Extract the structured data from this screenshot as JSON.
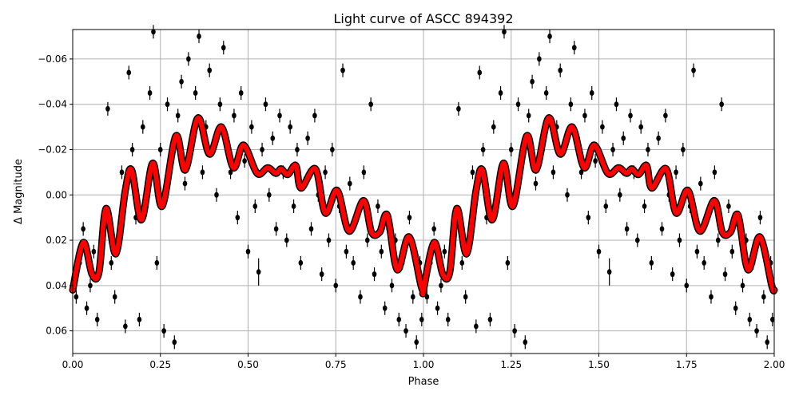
{
  "chart_data": {
    "type": "scatter",
    "title": "Light curve of ASCC 894392",
    "xlabel": "Phase",
    "ylabel": "Δ Magnitude",
    "xlim": [
      0,
      2
    ],
    "ylim": [
      0.07,
      -0.073
    ],
    "y_inverted": true,
    "grid": true,
    "x_ticks": [
      0,
      0.25,
      0.5,
      0.75,
      1.0,
      1.25,
      1.5,
      1.75,
      2.0
    ],
    "x_tick_labels": [
      "0.00",
      "0.25",
      "0.50",
      "0.75",
      "1.00",
      "1.25",
      "1.50",
      "1.75",
      "2.00"
    ],
    "y_ticks": [
      -0.06,
      -0.04,
      -0.02,
      0.0,
      0.02,
      0.04,
      0.06
    ],
    "y_tick_labels": [
      "−0.06",
      "−0.04",
      "−0.02",
      "0.00",
      "0.02",
      "0.04",
      "0.06"
    ],
    "colors": {
      "points": "#000000",
      "model": "#ff0000",
      "grid": "#b0b0b0"
    },
    "period_repeat": 1,
    "model_curve": {
      "phase": [
        0,
        0.03,
        0.055,
        0.075,
        0.095,
        0.123,
        0.15,
        0.168,
        0.196,
        0.228,
        0.255,
        0.294,
        0.321,
        0.357,
        0.39,
        0.424,
        0.458,
        0.487,
        0.526,
        0.556,
        0.579,
        0.594,
        0.613,
        0.636,
        0.651,
        0.692,
        0.72,
        0.754,
        0.788,
        0.829,
        0.852,
        0.875,
        0.897,
        0.925,
        0.959,
        0.993,
        1.0
      ],
      "mag": [
        0.042,
        0.021,
        0.035,
        0.034,
        0.006,
        0.026,
        -0.002,
        -0.011,
        0.011,
        -0.014,
        0.005,
        -0.026,
        -0.011,
        -0.034,
        -0.018,
        -0.03,
        -0.012,
        -0.022,
        -0.0095,
        -0.012,
        -0.0095,
        -0.0115,
        -0.009,
        -0.013,
        -0.003,
        -0.0115,
        0.008,
        -0.002,
        0.016,
        0.0025,
        0.0165,
        0.0165,
        0.009,
        0.033,
        0.0185,
        0.04,
        0.042
      ]
    },
    "points": [
      [
        0.01,
        0.045,
        0.003
      ],
      [
        0.02,
        0.03,
        0.003
      ],
      [
        0.03,
        0.015,
        0.003
      ],
      [
        0.04,
        0.05,
        0.003
      ],
      [
        0.05,
        0.04,
        0.003
      ],
      [
        0.06,
        0.025,
        0.003
      ],
      [
        0.07,
        0.055,
        0.003
      ],
      [
        0.08,
        0.02,
        0.003
      ],
      [
        0.09,
        0.01,
        0.003
      ],
      [
        0.1,
        -0.038,
        0.003
      ],
      [
        0.11,
        0.03,
        0.003
      ],
      [
        0.12,
        0.045,
        0.003
      ],
      [
        0.13,
        0.02,
        0.003
      ],
      [
        0.14,
        -0.01,
        0.003
      ],
      [
        0.15,
        0.058,
        0.003
      ],
      [
        0.16,
        -0.054,
        0.003
      ],
      [
        0.17,
        -0.02,
        0.003
      ],
      [
        0.18,
        0.01,
        0.003
      ],
      [
        0.19,
        0.055,
        0.003
      ],
      [
        0.2,
        -0.03,
        0.003
      ],
      [
        0.21,
        0.005,
        0.003
      ],
      [
        0.22,
        -0.045,
        0.003
      ],
      [
        0.23,
        -0.072,
        0.003
      ],
      [
        0.24,
        0.03,
        0.003
      ],
      [
        0.25,
        -0.02,
        0.003
      ],
      [
        0.26,
        0.06,
        0.003
      ],
      [
        0.27,
        -0.04,
        0.003
      ],
      [
        0.28,
        -0.015,
        0.003
      ],
      [
        0.29,
        0.065,
        0.003
      ],
      [
        0.3,
        -0.035,
        0.003
      ],
      [
        0.31,
        -0.05,
        0.003
      ],
      [
        0.32,
        -0.005,
        0.003
      ],
      [
        0.33,
        -0.06,
        0.003
      ],
      [
        0.34,
        -0.02,
        0.003
      ],
      [
        0.35,
        -0.045,
        0.003
      ],
      [
        0.36,
        -0.07,
        0.003
      ],
      [
        0.37,
        -0.01,
        0.003
      ],
      [
        0.38,
        -0.03,
        0.003
      ],
      [
        0.39,
        -0.055,
        0.003
      ],
      [
        0.4,
        -0.02,
        0.003
      ],
      [
        0.41,
        0.0,
        0.003
      ],
      [
        0.42,
        -0.04,
        0.003
      ],
      [
        0.43,
        -0.065,
        0.003
      ],
      [
        0.44,
        -0.025,
        0.003
      ],
      [
        0.45,
        -0.01,
        0.003
      ],
      [
        0.46,
        -0.035,
        0.003
      ],
      [
        0.47,
        0.01,
        0.003
      ],
      [
        0.48,
        -0.045,
        0.003
      ],
      [
        0.49,
        -0.015,
        0.003
      ],
      [
        0.5,
        0.025,
        0.003
      ],
      [
        0.51,
        -0.03,
        0.003
      ],
      [
        0.52,
        0.005,
        0.003
      ],
      [
        0.53,
        0.034,
        0.006
      ],
      [
        0.54,
        -0.02,
        0.003
      ],
      [
        0.55,
        -0.04,
        0.003
      ],
      [
        0.56,
        0.0,
        0.003
      ],
      [
        0.57,
        -0.025,
        0.003
      ],
      [
        0.58,
        0.015,
        0.003
      ],
      [
        0.59,
        -0.035,
        0.003
      ],
      [
        0.6,
        -0.01,
        0.003
      ],
      [
        0.61,
        0.02,
        0.003
      ],
      [
        0.62,
        -0.03,
        0.003
      ],
      [
        0.63,
        0.005,
        0.003
      ],
      [
        0.64,
        -0.02,
        0.003
      ],
      [
        0.65,
        0.03,
        0.003
      ],
      [
        0.66,
        -0.005,
        0.003
      ],
      [
        0.67,
        -0.025,
        0.003
      ],
      [
        0.68,
        0.015,
        0.003
      ],
      [
        0.69,
        -0.035,
        0.003
      ],
      [
        0.7,
        0.0,
        0.003
      ],
      [
        0.71,
        0.035,
        0.003
      ],
      [
        0.72,
        -0.01,
        0.003
      ],
      [
        0.73,
        0.02,
        0.003
      ],
      [
        0.74,
        -0.02,
        0.003
      ],
      [
        0.75,
        0.04,
        0.003
      ],
      [
        0.76,
        0.005,
        0.003
      ],
      [
        0.77,
        -0.055,
        0.003
      ],
      [
        0.78,
        0.025,
        0.003
      ],
      [
        0.79,
        -0.005,
        0.003
      ],
      [
        0.8,
        0.03,
        0.003
      ],
      [
        0.81,
        0.01,
        0.003
      ],
      [
        0.82,
        0.045,
        0.003
      ],
      [
        0.83,
        -0.01,
        0.003
      ],
      [
        0.84,
        0.02,
        0.003
      ],
      [
        0.85,
        -0.04,
        0.003
      ],
      [
        0.86,
        0.035,
        0.003
      ],
      [
        0.87,
        0.005,
        0.003
      ],
      [
        0.88,
        0.025,
        0.003
      ],
      [
        0.89,
        0.05,
        0.003
      ],
      [
        0.9,
        0.015,
        0.003
      ],
      [
        0.91,
        0.04,
        0.003
      ],
      [
        0.92,
        0.02,
        0.003
      ],
      [
        0.93,
        0.055,
        0.003
      ],
      [
        0.94,
        0.03,
        0.003
      ],
      [
        0.95,
        0.06,
        0.003
      ],
      [
        0.96,
        0.01,
        0.003
      ],
      [
        0.97,
        0.045,
        0.003
      ],
      [
        0.98,
        0.065,
        0.003
      ],
      [
        0.99,
        0.03,
        0.003
      ],
      [
        0.995,
        0.055,
        0.003
      ]
    ]
  }
}
